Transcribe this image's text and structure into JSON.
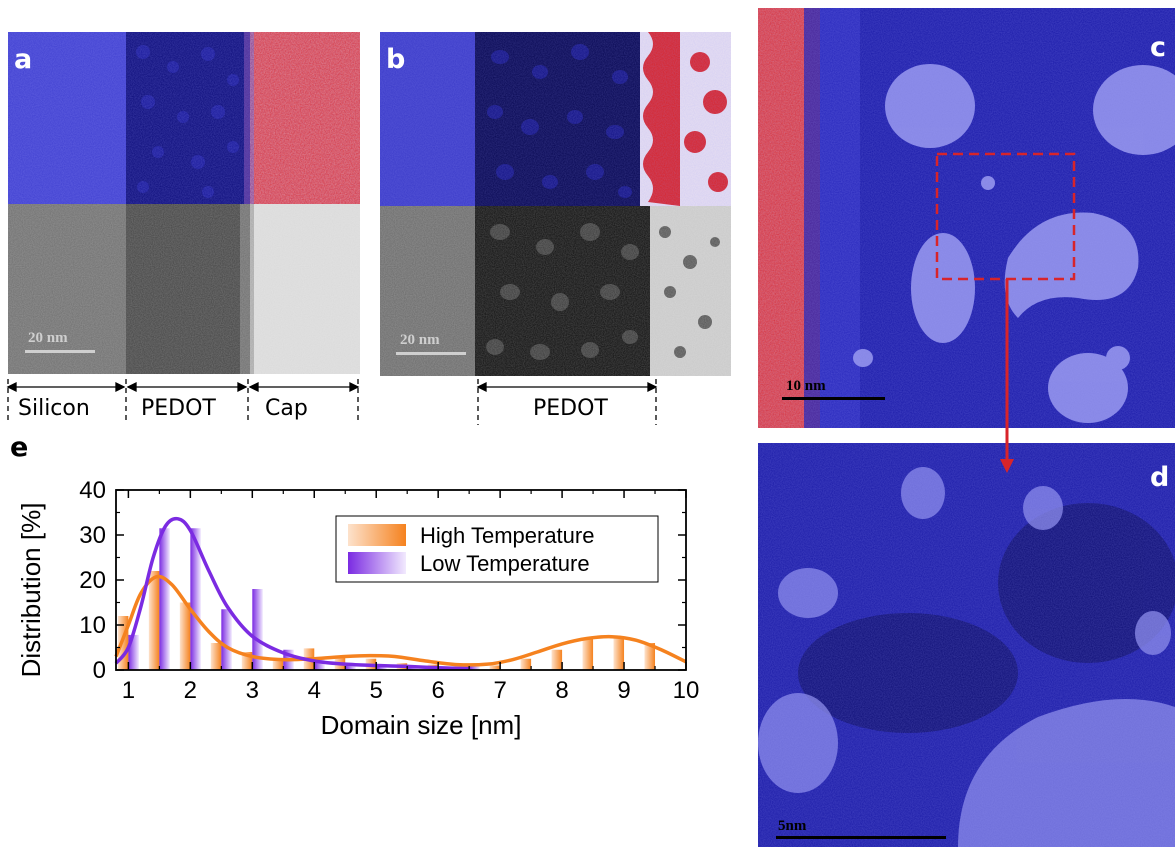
{
  "panels": {
    "a": {
      "letter": "a",
      "scalebar": "20 nm",
      "regions": [
        "Silicon",
        "PEDOT",
        "Cap"
      ]
    },
    "b": {
      "letter": "b",
      "scalebar": "20 nm",
      "regions": [
        "PEDOT"
      ]
    },
    "c": {
      "letter": "c",
      "scalebar": "10 nm"
    },
    "d": {
      "letter": "d",
      "scalebar": "5nm"
    },
    "e": {
      "letter": "e"
    }
  },
  "colors": {
    "high": "#f5821f",
    "low": "#7b2be2",
    "map_blue": "#1f1fb0",
    "map_red": "#d8242a"
  },
  "chart_data": {
    "type": "bar",
    "xlabel": "Domain size [nm]",
    "ylabel": "Distribution [%]",
    "xlim": [
      0.8,
      10
    ],
    "ylim": [
      0,
      40
    ],
    "xticks": [
      1,
      2,
      3,
      4,
      5,
      6,
      7,
      8,
      9,
      10
    ],
    "yticks": [
      0,
      10,
      20,
      30,
      40
    ],
    "legend_position": "top-right",
    "series": [
      {
        "name": "High Temperature",
        "color": "#f5821f",
        "x": [
          1.0,
          1.5,
          2.0,
          2.5,
          3.0,
          3.5,
          4.0,
          4.5,
          5.0,
          5.5,
          6.0,
          6.5,
          7.0,
          7.5,
          8.0,
          8.5,
          9.0,
          9.5
        ],
        "values": [
          12,
          22,
          15,
          6,
          4,
          2.5,
          4.8,
          3,
          2.5,
          1.5,
          1.2,
          0.8,
          1,
          2.5,
          4.5,
          7,
          7.5,
          6
        ],
        "fit": {
          "x": [
            0.8,
            1.0,
            1.2,
            1.45,
            1.7,
            2.0,
            2.3,
            2.6,
            3.0,
            3.5,
            4.0,
            4.5,
            4.9,
            5.3,
            5.8,
            6.3,
            6.8,
            7.2,
            7.6,
            8.0,
            8.4,
            8.8,
            9.2,
            9.6,
            10.0
          ],
          "y": [
            3,
            10,
            17,
            20.7,
            19,
            13.5,
            8.5,
            5,
            3,
            2.3,
            2.5,
            3,
            3.2,
            3,
            2,
            1.2,
            1.3,
            2.3,
            4,
            5.8,
            7,
            7.4,
            6.6,
            4.5,
            1.8
          ]
        }
      },
      {
        "name": "Low Temperature",
        "color": "#7b2be2",
        "x": [
          1.0,
          1.5,
          2.0,
          2.5,
          3.0,
          3.5,
          4.0,
          4.5,
          5.0,
          5.5,
          6.0,
          6.5
        ],
        "values": [
          7.8,
          31.5,
          31.5,
          13.5,
          18,
          4.5,
          2.5,
          1.5,
          1.2,
          1,
          0.8,
          0.8
        ],
        "fit": {
          "x": [
            0.8,
            1.0,
            1.2,
            1.4,
            1.6,
            1.8,
            2.0,
            2.3,
            2.6,
            3.0,
            3.5,
            4.0,
            4.5,
            5.0,
            5.5,
            6.0,
            6.5
          ],
          "y": [
            1.5,
            5,
            14,
            25,
            32,
            33.6,
            31,
            22,
            14,
            7.5,
            3.8,
            2,
            1.3,
            1,
            0.8,
            0.5,
            0.3
          ]
        }
      }
    ]
  }
}
